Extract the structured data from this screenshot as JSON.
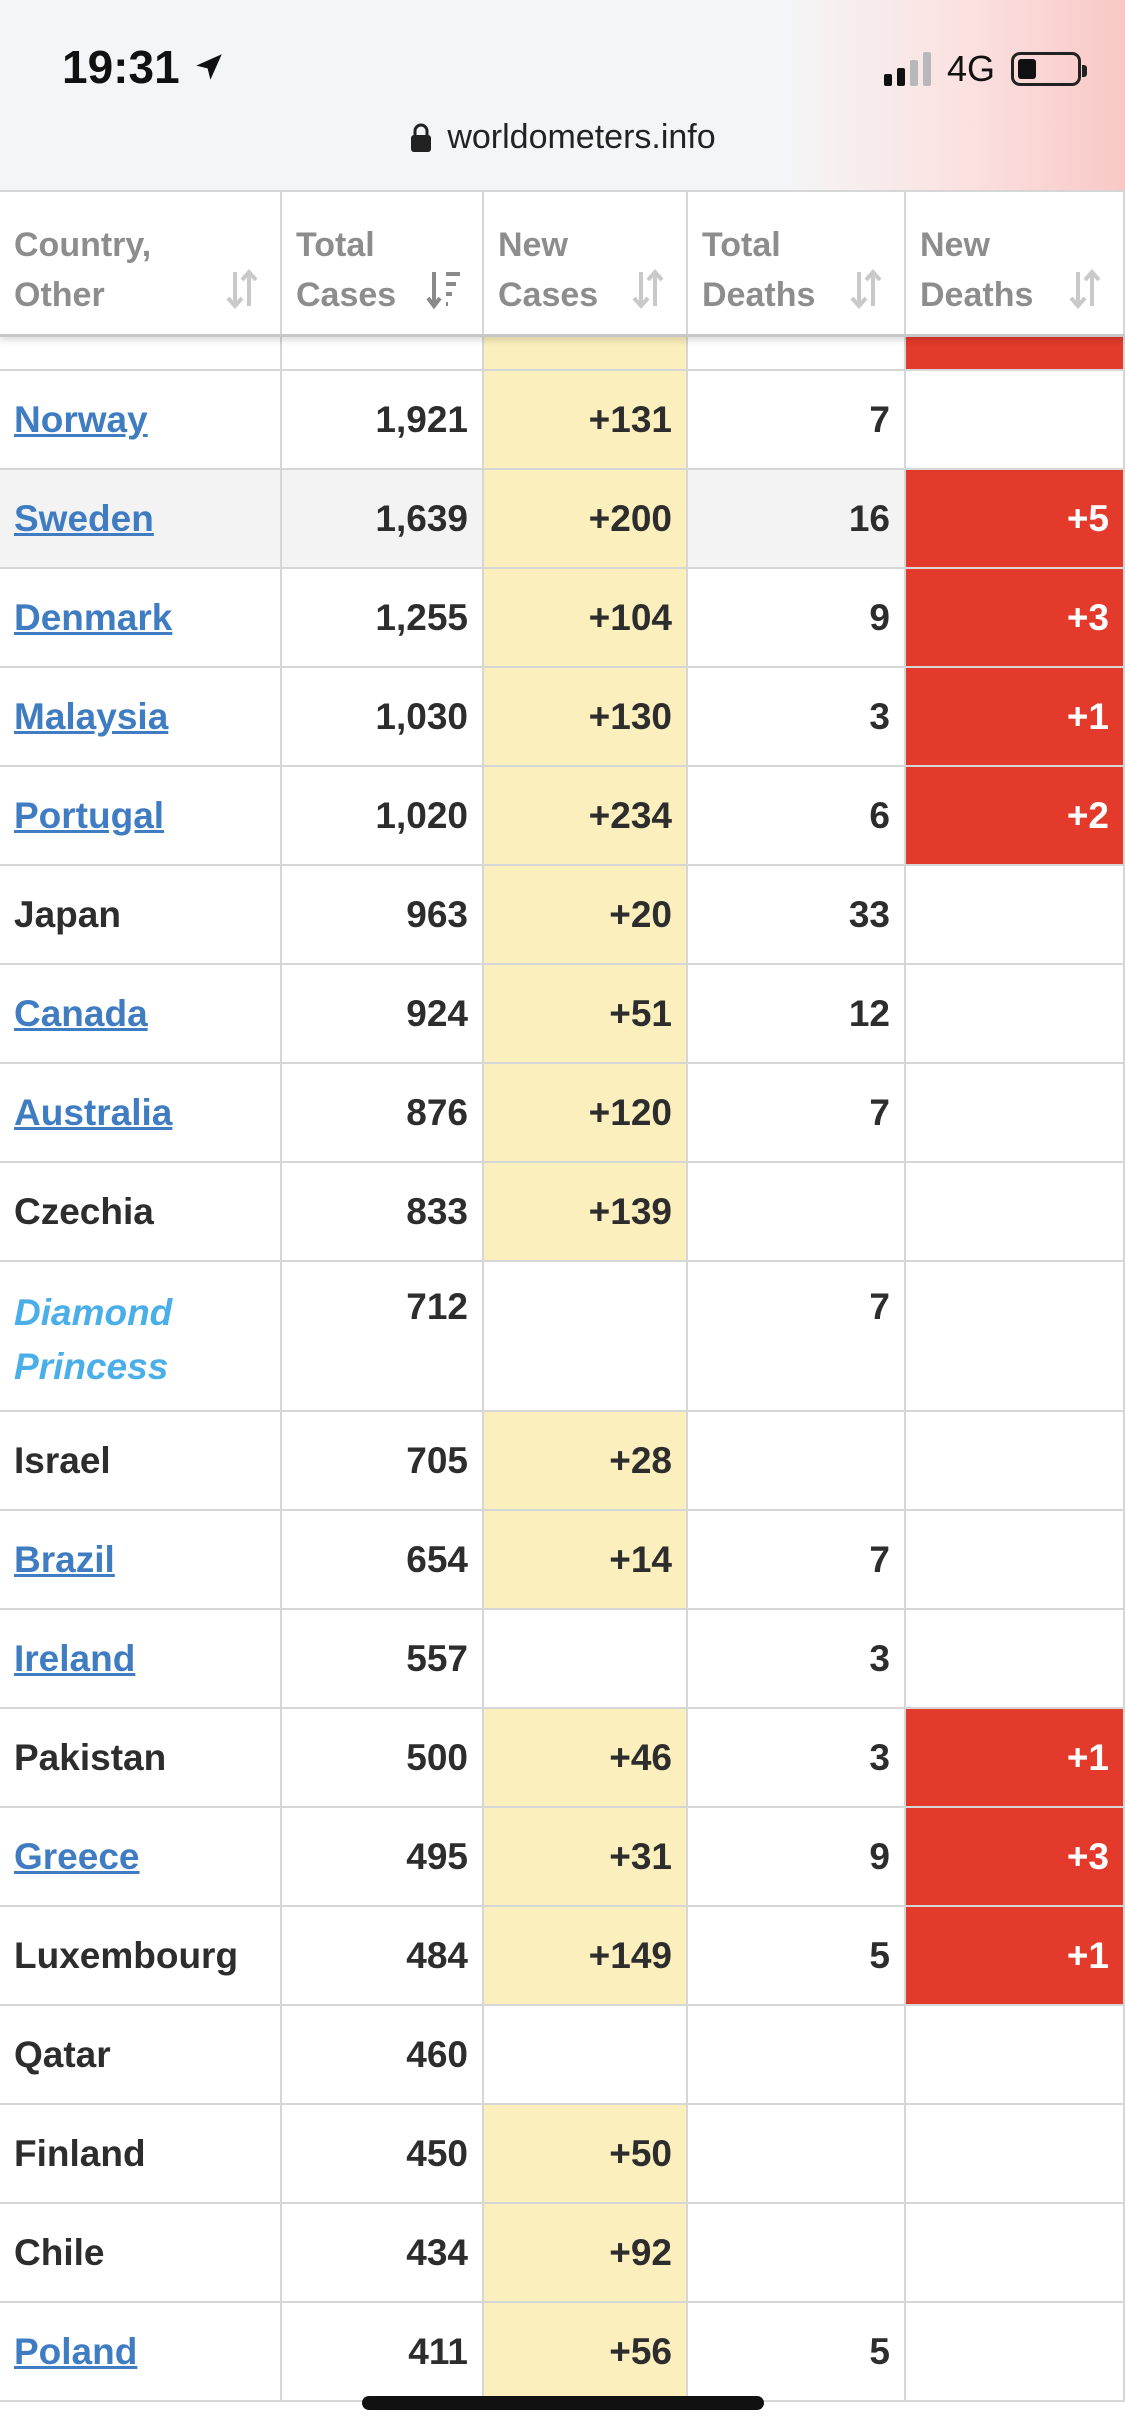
{
  "status_bar": {
    "time": "19:31",
    "network": "4G"
  },
  "browser": {
    "url": "worldometers.info"
  },
  "table": {
    "headers": [
      {
        "line1": "Country,",
        "line2": "Other"
      },
      {
        "line1": "Total",
        "line2": "Cases"
      },
      {
        "line1": "New",
        "line2": "Cases"
      },
      {
        "line1": "Total",
        "line2": "Deaths"
      },
      {
        "line1": "New",
        "line2": "Deaths"
      }
    ],
    "rows": [
      {
        "country": "Norway",
        "style": "link",
        "total_cases": "1,921",
        "new_cases": "+131",
        "total_deaths": "7",
        "new_deaths": ""
      },
      {
        "country": "Sweden",
        "style": "link",
        "total_cases": "1,639",
        "new_cases": "+200",
        "total_deaths": "16",
        "new_deaths": "+5"
      },
      {
        "country": "Denmark",
        "style": "link",
        "total_cases": "1,255",
        "new_cases": "+104",
        "total_deaths": "9",
        "new_deaths": "+3"
      },
      {
        "country": "Malaysia",
        "style": "link",
        "total_cases": "1,030",
        "new_cases": "+130",
        "total_deaths": "3",
        "new_deaths": "+1"
      },
      {
        "country": "Portugal",
        "style": "link",
        "total_cases": "1,020",
        "new_cases": "+234",
        "total_deaths": "6",
        "new_deaths": "+2"
      },
      {
        "country": "Japan",
        "style": "plain",
        "total_cases": "963",
        "new_cases": "+20",
        "total_deaths": "33",
        "new_deaths": ""
      },
      {
        "country": "Canada",
        "style": "link",
        "total_cases": "924",
        "new_cases": "+51",
        "total_deaths": "12",
        "new_deaths": ""
      },
      {
        "country": "Australia",
        "style": "link",
        "total_cases": "876",
        "new_cases": "+120",
        "total_deaths": "7",
        "new_deaths": ""
      },
      {
        "country": "Czechia",
        "style": "plain",
        "total_cases": "833",
        "new_cases": "+139",
        "total_deaths": "",
        "new_deaths": ""
      },
      {
        "country": "Diamond Princess",
        "style": "ship",
        "total_cases": "712",
        "new_cases": "",
        "total_deaths": "7",
        "new_deaths": ""
      },
      {
        "country": "Israel",
        "style": "plain",
        "total_cases": "705",
        "new_cases": "+28",
        "total_deaths": "",
        "new_deaths": ""
      },
      {
        "country": "Brazil",
        "style": "link",
        "total_cases": "654",
        "new_cases": "+14",
        "total_deaths": "7",
        "new_deaths": ""
      },
      {
        "country": "Ireland",
        "style": "link",
        "total_cases": "557",
        "new_cases": "",
        "total_deaths": "3",
        "new_deaths": ""
      },
      {
        "country": "Pakistan",
        "style": "plain",
        "total_cases": "500",
        "new_cases": "+46",
        "total_deaths": "3",
        "new_deaths": "+1"
      },
      {
        "country": "Greece",
        "style": "link",
        "total_cases": "495",
        "new_cases": "+31",
        "total_deaths": "9",
        "new_deaths": "+3"
      },
      {
        "country": "Luxembourg",
        "style": "plain",
        "total_cases": "484",
        "new_cases": "+149",
        "total_deaths": "5",
        "new_deaths": "+1"
      },
      {
        "country": "Qatar",
        "style": "plain",
        "total_cases": "460",
        "new_cases": "",
        "total_deaths": "",
        "new_deaths": ""
      },
      {
        "country": "Finland",
        "style": "plain",
        "total_cases": "450",
        "new_cases": "+50",
        "total_deaths": "",
        "new_deaths": ""
      },
      {
        "country": "Chile",
        "style": "plain",
        "total_cases": "434",
        "new_cases": "+92",
        "total_deaths": "",
        "new_deaths": ""
      },
      {
        "country": "Poland",
        "style": "link",
        "total_cases": "411",
        "new_cases": "+56",
        "total_deaths": "5",
        "new_deaths": ""
      }
    ]
  },
  "colors": {
    "link": "#3f7cc2",
    "ship": "#4aaee8",
    "new_cases_bg": "#fbefbd",
    "new_deaths_bg": "#e33a2b"
  }
}
